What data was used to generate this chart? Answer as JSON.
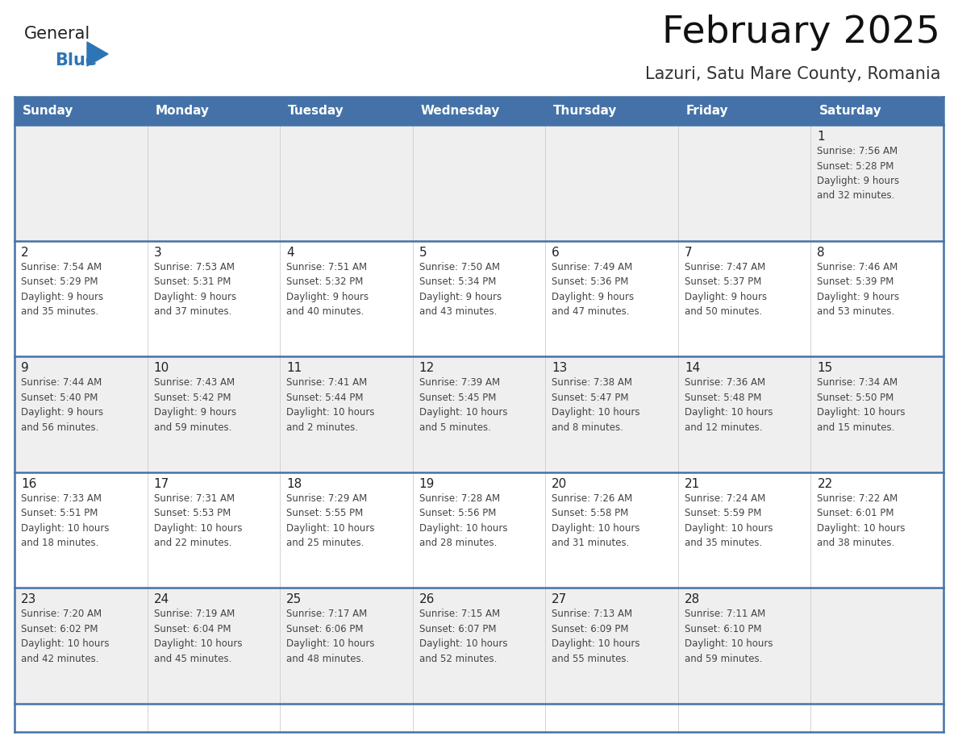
{
  "title": "February 2025",
  "subtitle": "Lazuri, Satu Mare County, Romania",
  "days_of_week": [
    "Sunday",
    "Monday",
    "Tuesday",
    "Wednesday",
    "Thursday",
    "Friday",
    "Saturday"
  ],
  "header_bg": "#4472A8",
  "header_text": "#FFFFFF",
  "cell_bg_even": "#EFEFEF",
  "cell_bg_odd": "#FFFFFF",
  "cell_border_color": "#4472A8",
  "cell_divider_color": "#CCCCCC",
  "day_number_color": "#222222",
  "text_color": "#444444",
  "title_color": "#111111",
  "subtitle_color": "#333333",
  "logo_general_color": "#222222",
  "logo_blue_color": "#2E75B6",
  "weeks": [
    [
      {
        "day": null,
        "info": null
      },
      {
        "day": null,
        "info": null
      },
      {
        "day": null,
        "info": null
      },
      {
        "day": null,
        "info": null
      },
      {
        "day": null,
        "info": null
      },
      {
        "day": null,
        "info": null
      },
      {
        "day": 1,
        "info": "Sunrise: 7:56 AM\nSunset: 5:28 PM\nDaylight: 9 hours\nand 32 minutes."
      }
    ],
    [
      {
        "day": 2,
        "info": "Sunrise: 7:54 AM\nSunset: 5:29 PM\nDaylight: 9 hours\nand 35 minutes."
      },
      {
        "day": 3,
        "info": "Sunrise: 7:53 AM\nSunset: 5:31 PM\nDaylight: 9 hours\nand 37 minutes."
      },
      {
        "day": 4,
        "info": "Sunrise: 7:51 AM\nSunset: 5:32 PM\nDaylight: 9 hours\nand 40 minutes."
      },
      {
        "day": 5,
        "info": "Sunrise: 7:50 AM\nSunset: 5:34 PM\nDaylight: 9 hours\nand 43 minutes."
      },
      {
        "day": 6,
        "info": "Sunrise: 7:49 AM\nSunset: 5:36 PM\nDaylight: 9 hours\nand 47 minutes."
      },
      {
        "day": 7,
        "info": "Sunrise: 7:47 AM\nSunset: 5:37 PM\nDaylight: 9 hours\nand 50 minutes."
      },
      {
        "day": 8,
        "info": "Sunrise: 7:46 AM\nSunset: 5:39 PM\nDaylight: 9 hours\nand 53 minutes."
      }
    ],
    [
      {
        "day": 9,
        "info": "Sunrise: 7:44 AM\nSunset: 5:40 PM\nDaylight: 9 hours\nand 56 minutes."
      },
      {
        "day": 10,
        "info": "Sunrise: 7:43 AM\nSunset: 5:42 PM\nDaylight: 9 hours\nand 59 minutes."
      },
      {
        "day": 11,
        "info": "Sunrise: 7:41 AM\nSunset: 5:44 PM\nDaylight: 10 hours\nand 2 minutes."
      },
      {
        "day": 12,
        "info": "Sunrise: 7:39 AM\nSunset: 5:45 PM\nDaylight: 10 hours\nand 5 minutes."
      },
      {
        "day": 13,
        "info": "Sunrise: 7:38 AM\nSunset: 5:47 PM\nDaylight: 10 hours\nand 8 minutes."
      },
      {
        "day": 14,
        "info": "Sunrise: 7:36 AM\nSunset: 5:48 PM\nDaylight: 10 hours\nand 12 minutes."
      },
      {
        "day": 15,
        "info": "Sunrise: 7:34 AM\nSunset: 5:50 PM\nDaylight: 10 hours\nand 15 minutes."
      }
    ],
    [
      {
        "day": 16,
        "info": "Sunrise: 7:33 AM\nSunset: 5:51 PM\nDaylight: 10 hours\nand 18 minutes."
      },
      {
        "day": 17,
        "info": "Sunrise: 7:31 AM\nSunset: 5:53 PM\nDaylight: 10 hours\nand 22 minutes."
      },
      {
        "day": 18,
        "info": "Sunrise: 7:29 AM\nSunset: 5:55 PM\nDaylight: 10 hours\nand 25 minutes."
      },
      {
        "day": 19,
        "info": "Sunrise: 7:28 AM\nSunset: 5:56 PM\nDaylight: 10 hours\nand 28 minutes."
      },
      {
        "day": 20,
        "info": "Sunrise: 7:26 AM\nSunset: 5:58 PM\nDaylight: 10 hours\nand 31 minutes."
      },
      {
        "day": 21,
        "info": "Sunrise: 7:24 AM\nSunset: 5:59 PM\nDaylight: 10 hours\nand 35 minutes."
      },
      {
        "day": 22,
        "info": "Sunrise: 7:22 AM\nSunset: 6:01 PM\nDaylight: 10 hours\nand 38 minutes."
      }
    ],
    [
      {
        "day": 23,
        "info": "Sunrise: 7:20 AM\nSunset: 6:02 PM\nDaylight: 10 hours\nand 42 minutes."
      },
      {
        "day": 24,
        "info": "Sunrise: 7:19 AM\nSunset: 6:04 PM\nDaylight: 10 hours\nand 45 minutes."
      },
      {
        "day": 25,
        "info": "Sunrise: 7:17 AM\nSunset: 6:06 PM\nDaylight: 10 hours\nand 48 minutes."
      },
      {
        "day": 26,
        "info": "Sunrise: 7:15 AM\nSunset: 6:07 PM\nDaylight: 10 hours\nand 52 minutes."
      },
      {
        "day": 27,
        "info": "Sunrise: 7:13 AM\nSunset: 6:09 PM\nDaylight: 10 hours\nand 55 minutes."
      },
      {
        "day": 28,
        "info": "Sunrise: 7:11 AM\nSunset: 6:10 PM\nDaylight: 10 hours\nand 59 minutes."
      },
      {
        "day": null,
        "info": null
      }
    ]
  ]
}
